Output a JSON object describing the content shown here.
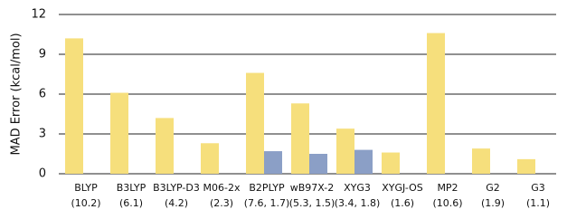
{
  "chart_data": {
    "type": "bar",
    "ylabel": "MAD Error (kcal/mol)",
    "categories": [
      "BLYP",
      "B3LYP",
      "B3LYP-D3",
      "M06-2x",
      "B2PLYP",
      "wB97X-2",
      "XYG3",
      "XYGJ-OS",
      "MP2",
      "G2",
      "G3"
    ],
    "category_notes": [
      "(10.2)",
      "(6.1)",
      "(4.2)",
      "(2.3)",
      "(7.6, 1.7)",
      "(5.3, 1.5)",
      "(3.4, 1.8)",
      "(1.6)",
      "(10.6)",
      "(1.9)",
      "(1.1)"
    ],
    "series": [
      {
        "color": "#f6df7c",
        "values": [
          10.2,
          6.1,
          4.2,
          2.3,
          7.6,
          5.3,
          3.4,
          1.6,
          10.6,
          1.9,
          1.1
        ]
      },
      {
        "color": "#8b9fc6",
        "values": [
          null,
          null,
          null,
          null,
          1.7,
          1.5,
          1.8,
          null,
          null,
          null,
          null
        ]
      }
    ],
    "ylim": [
      0,
      12
    ],
    "yticks": [
      0,
      3,
      6,
      9,
      12
    ],
    "grid": true
  }
}
